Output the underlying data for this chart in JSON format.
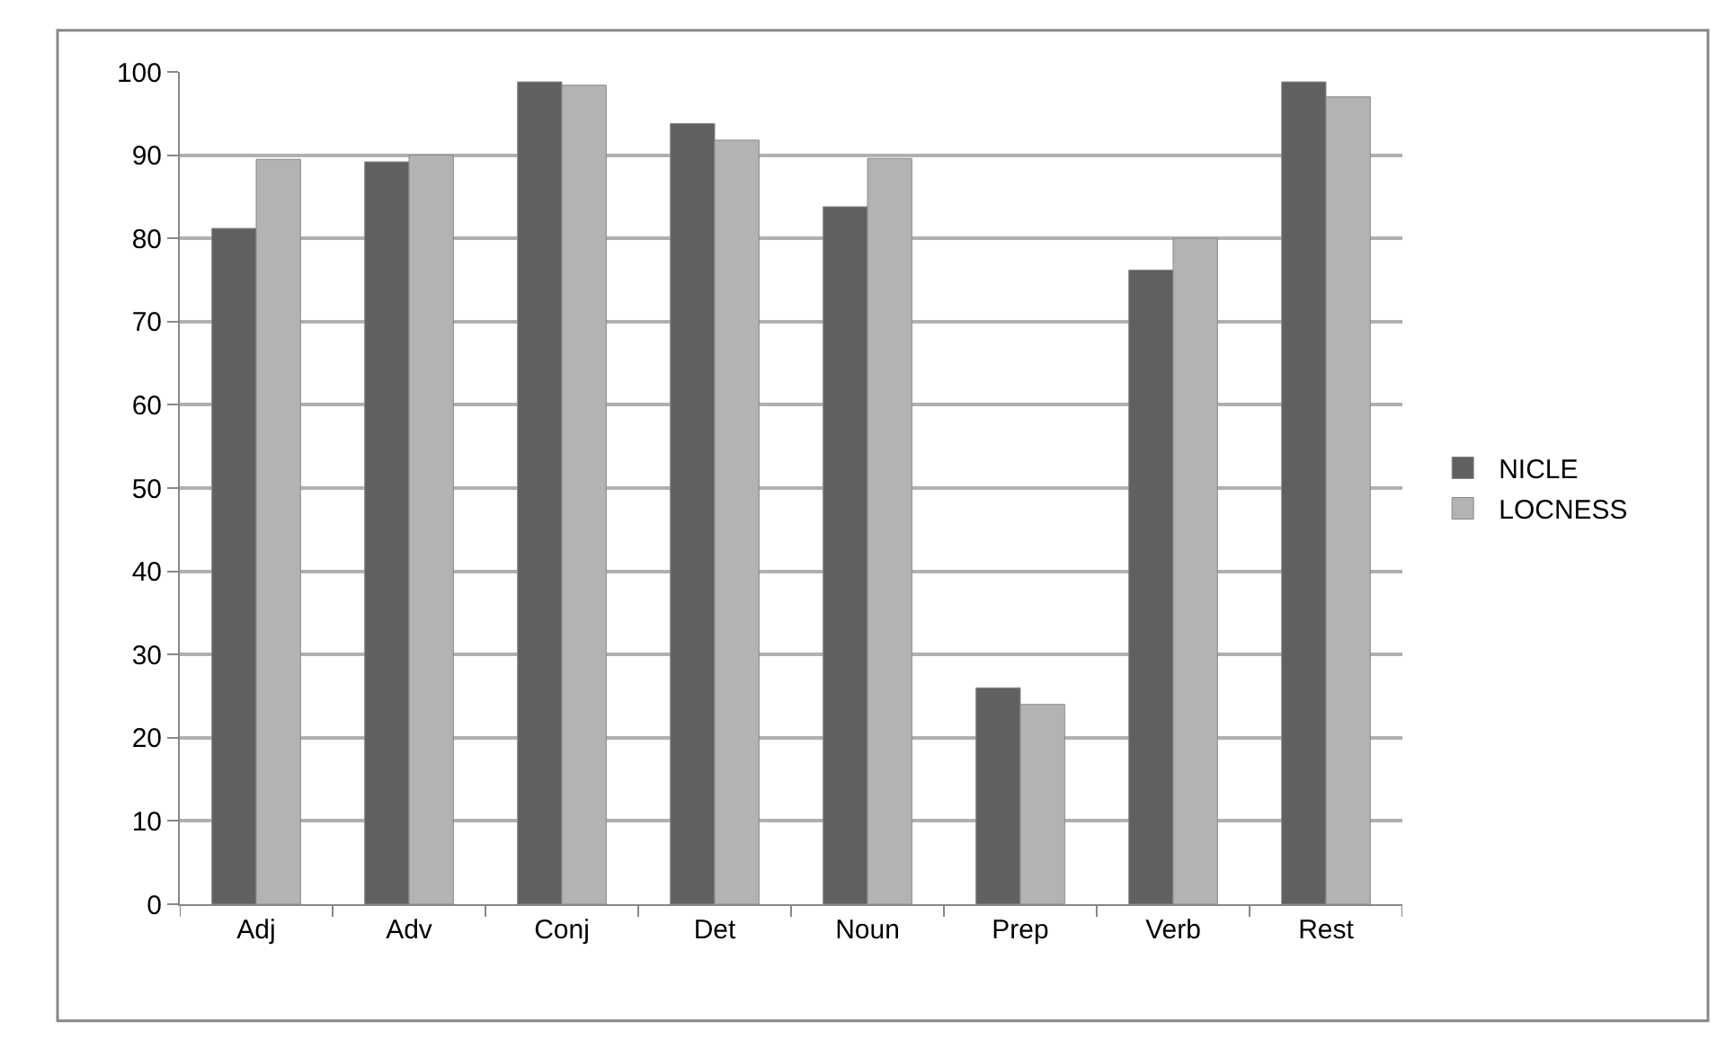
{
  "chart_data": {
    "type": "bar",
    "categories": [
      "Adj",
      "Adv",
      "Conj",
      "Det",
      "Noun",
      "Prep",
      "Verb",
      "Rest"
    ],
    "series": [
      {
        "name": "NICLE",
        "color": "#606060",
        "values": [
          81.2,
          89.2,
          98.8,
          93.8,
          83.8,
          26,
          76.2,
          98.8
        ]
      },
      {
        "name": "LOCNESS",
        "color": "#b3b3b3",
        "values": [
          89.5,
          90,
          98.4,
          91.8,
          89.6,
          24,
          80,
          97
        ]
      }
    ],
    "ylim": [
      0,
      100
    ],
    "yticks": [
      0,
      10,
      20,
      30,
      40,
      50,
      60,
      70,
      80,
      90,
      100
    ],
    "grid": "y",
    "legend": "right"
  }
}
